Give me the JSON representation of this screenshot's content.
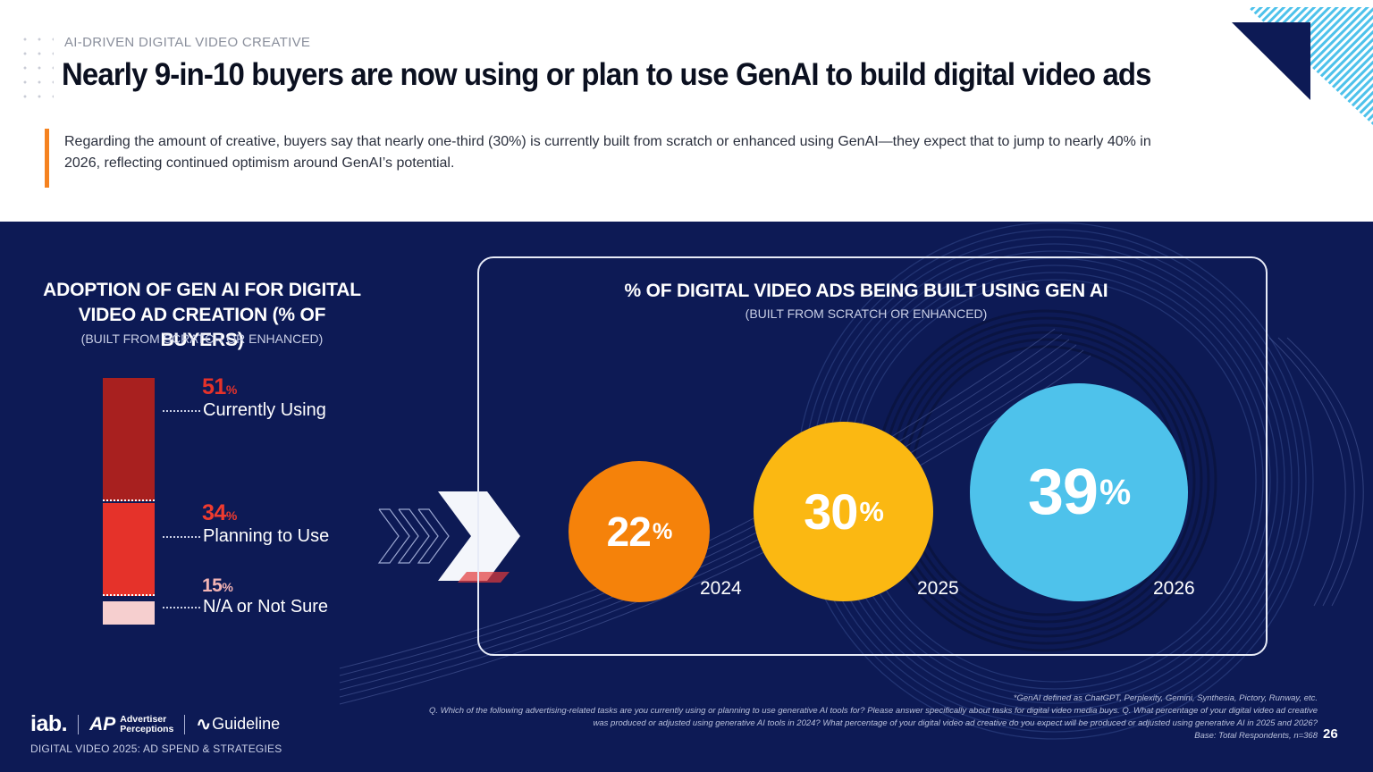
{
  "header": {
    "eyebrow": "AI-DRIVEN DIGITAL VIDEO CREATIVE",
    "title": "Nearly 9-in-10 buyers are now using or plan to use GenAI to build digital video ads",
    "intro": "Regarding the amount of creative, buyers say that nearly one-third (30%) is currently built from scratch or enhanced using GenAI—they expect that to jump to nearly 40% in 2026, reflecting continued optimism around GenAI’s potential."
  },
  "colors": {
    "navy": "#0d1a55",
    "accent_orange": "#f5821f",
    "currently_using": "#a8201f",
    "planning": "#e5322a",
    "not_sure": "#f6cfcf",
    "year_2024": "#f5820a",
    "year_2025": "#fbb812",
    "year_2026": "#4ec2eb"
  },
  "adoption": {
    "title": "ADOPTION OF GEN AI FOR DIGITAL VIDEO AD CREATION (% OF BUYERS)",
    "subtitle": "(BUILT FROM SCRATCH OR ENHANCED)",
    "items": [
      {
        "value": "51",
        "unit": "%",
        "label": "Currently Using"
      },
      {
        "value": "34",
        "unit": "%",
        "label": "Planning to Use"
      },
      {
        "value": "15",
        "unit": "%",
        "label": "N/A or Not Sure"
      }
    ]
  },
  "share": {
    "title": "% OF DIGITAL VIDEO ADS BEING BUILT USING GEN AI",
    "subtitle": "(BUILT FROM SCRATCH OR ENHANCED)",
    "items": [
      {
        "value": "22",
        "unit": "%",
        "year": "2024"
      },
      {
        "value": "30",
        "unit": "%",
        "year": "2025"
      },
      {
        "value": "39",
        "unit": "%",
        "year": "2026"
      }
    ]
  },
  "chart_data": [
    {
      "type": "bar",
      "title": "ADOPTION OF GEN AI FOR DIGITAL VIDEO AD CREATION (% OF BUYERS)",
      "subtitle": "(BUILT FROM SCRATCH OR ENHANCED)",
      "stacked": true,
      "categories": [
        "Currently Using",
        "Planning to Use",
        "N/A or Not Sure"
      ],
      "values": [
        51,
        34,
        15
      ]
    },
    {
      "type": "scatter",
      "title": "% OF DIGITAL VIDEO ADS BEING BUILT USING GEN AI",
      "subtitle": "(BUILT FROM SCRATCH OR ENHANCED)",
      "categories": [
        "2024",
        "2025",
        "2026"
      ],
      "values": [
        22,
        30,
        39
      ]
    }
  ],
  "footer": {
    "logo_iab": "iab.",
    "logo_ap_line1": "Advertiser",
    "logo_ap_line2": "Perceptions",
    "logo_guideline": "Guideline",
    "report": "DIGITAL VIDEO 2025: AD SPEND & STRATEGIES",
    "footnote_1": "*GenAI defined as ChatGPT, Perplexity, Gemini, Synthesia, Pictory, Runway, etc.",
    "footnote_2": "Q. Which of the following advertising-related tasks are you currently using or planning to use generative AI tools for? Please answer specifically about tasks for digital video media buys. Q. What percentage of your digital video ad creative was produced or adjusted using generative AI tools in 2024? What percentage of your digital video ad creative do you expect will be produced or adjusted using generative AI in 2025 and 2026?",
    "footnote_3": "Base: Total Respondents, n=368",
    "page_number": "26"
  }
}
